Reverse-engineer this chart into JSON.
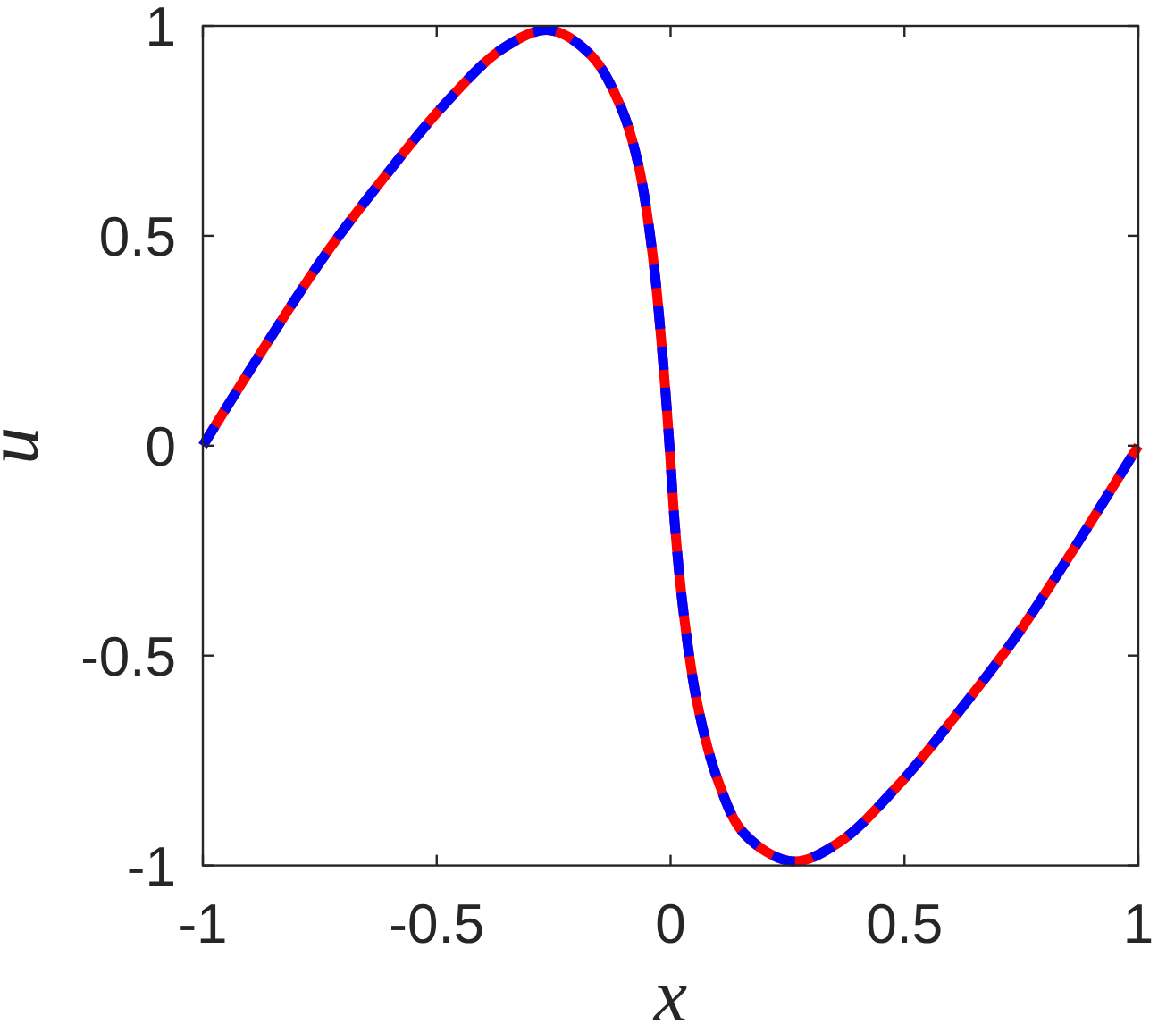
{
  "chart_data": {
    "type": "line",
    "xlabel": "x",
    "ylabel": "u",
    "x": [
      -1,
      -0.863,
      -0.737,
      -0.611,
      -0.485,
      -0.359,
      -0.26,
      -0.17,
      -0.106,
      -0.068,
      -0.038,
      -0.019,
      -0.004,
      0.009,
      0.028,
      0.057,
      0.101,
      0.158,
      0.26,
      0.359,
      0.485,
      0.611,
      0.737,
      0.863,
      1
    ],
    "series": [
      {
        "color": "#ff0000",
        "line_style": "solid",
        "values": [
          0,
          0.244,
          0.457,
          0.641,
          0.811,
          0.946,
          0.99,
          0.93,
          0.806,
          0.665,
          0.452,
          0.239,
          0.026,
          -0.187,
          -0.4,
          -0.613,
          -0.797,
          -0.925,
          -0.99,
          -0.946,
          -0.811,
          -0.641,
          -0.457,
          -0.244,
          0
        ]
      },
      {
        "color": "#0000ff",
        "line_style": "dashed",
        "values": [
          0,
          0.244,
          0.457,
          0.641,
          0.811,
          0.946,
          0.99,
          0.93,
          0.806,
          0.665,
          0.452,
          0.239,
          0.026,
          -0.187,
          -0.4,
          -0.613,
          -0.797,
          -0.925,
          -0.99,
          -0.946,
          -0.811,
          -0.641,
          -0.457,
          -0.244,
          0
        ]
      }
    ],
    "xlim": [
      -1,
      1
    ],
    "ylim": [
      -1,
      1
    ],
    "xticks": [
      -1,
      -0.5,
      0,
      0.5,
      1
    ],
    "yticks": [
      -1,
      -0.5,
      0,
      0.5,
      1
    ]
  }
}
